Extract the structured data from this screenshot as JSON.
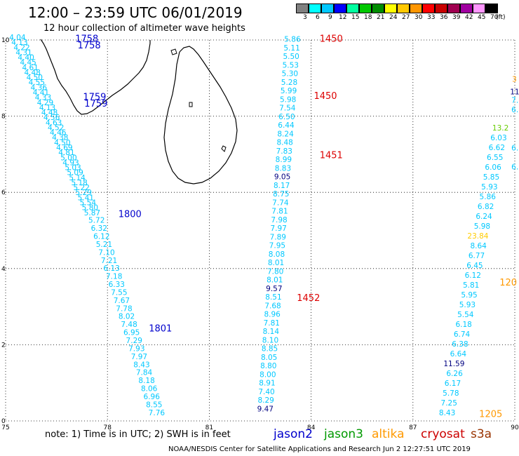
{
  "title": "12:00 – 23:59 UTC 06/01/2019",
  "subtitle": "12 hour collection of altimeter wave heights",
  "legend": {
    "unit": "(ft)",
    "colors": [
      "#808080",
      "#00ffff",
      "#00c8ff",
      "#0000ff",
      "#00ffa0",
      "#00c800",
      "#008c00",
      "#ffff00",
      "#ffc800",
      "#ff9600",
      "#ff0000",
      "#c80000",
      "#a00050",
      "#a000a0",
      "#ff96ff",
      "#000000"
    ],
    "labels": [
      "3",
      "6",
      "9",
      "12",
      "15",
      "18",
      "21",
      "24",
      "27",
      "30",
      "33",
      "36",
      "39",
      "42",
      "45",
      "70"
    ]
  },
  "axes": {
    "x_ticks": [
      "75",
      "78",
      "81",
      "84",
      "87",
      "90"
    ],
    "y_ticks": [
      "0",
      "2",
      "4",
      "6",
      "8",
      "10"
    ]
  },
  "note": "note: 1) Time is in UTC; 2) SWH is in feet",
  "satellites": [
    {
      "name": "jason2",
      "color": "#0000cc"
    },
    {
      "name": "jason3",
      "color": "#009900"
    },
    {
      "name": "altika",
      "color": "#ff9900"
    },
    {
      "name": "cryosat",
      "color": "#cc0000"
    },
    {
      "name": "s3a",
      "color": "#993300"
    }
  ],
  "credit": "NOAA/NESDIS Center for Satellite Applications and Research   Jun  2 12:27:51 UTC 2019",
  "colors": {
    "cyan": "#00c8ff",
    "blue": "#0000cc",
    "red": "#dd0000",
    "orange": "#ff9900",
    "yellow": "#ffcc00",
    "green": "#66cc00",
    "navy": "#000080"
  },
  "track1": {
    "heights": [
      "4.04",
      "4.13",
      "4.22",
      "4.31",
      "4.40",
      "4.45",
      "4.61",
      "4.48",
      "4.50",
      "4.55",
      "4.36",
      "4.41",
      "4.33",
      "4.29",
      "4.13",
      "4.48",
      "4.56",
      "4.63",
      "4.52",
      "4.46",
      "4.38",
      "4.50",
      "4.69",
      "4.81",
      "5.00",
      "4.93",
      "5.03",
      "5.09",
      "5.14",
      "5.18",
      "5.22",
      "5.29",
      "5.41",
      "5.54",
      "5.80",
      "5.87",
      "5.72",
      "6.32",
      "6.12",
      "5.21",
      "7.10",
      "7.21",
      "6.13",
      "7.18",
      "6.33",
      "7.55",
      "7.67",
      "7.78",
      "8.02",
      "7.48",
      "6.95",
      "7.29",
      "7.93",
      "7.97",
      "8.43",
      "7.84",
      "8.18",
      "8.06",
      "6.96",
      "8.55",
      "7.76"
    ],
    "dense_colors": "cyan",
    "time_labels": [
      {
        "text": "1758",
        "lon": 77.05,
        "lat": 9.95
      },
      {
        "text": "1758",
        "lon": 77.12,
        "lat": 9.78
      },
      {
        "text": "1759",
        "lon": 77.28,
        "lat": 8.43
      },
      {
        "text": "1759",
        "lon": 77.32,
        "lat": 8.25
      },
      {
        "text": "1800",
        "lon": 78.32,
        "lat": 5.35
      },
      {
        "text": "1801",
        "lon": 79.22,
        "lat": 2.35
      }
    ]
  },
  "track2": {
    "heights": [
      "5.86",
      "5.11",
      "5.50",
      "5.53",
      "5.30",
      "5.28",
      "5.99",
      "5.98",
      "7.54",
      "6.50",
      "6.44",
      "8.24",
      "8.48",
      "7.83",
      "8.99",
      "8.83",
      "9.05",
      "8.17",
      "8.75",
      "7.74",
      "7.81",
      "7.98",
      "7.97",
      "7.89",
      "7.95",
      "8.08",
      "8.01",
      "7.80",
      "8.01",
      "9.57",
      "8.51",
      "7.68",
      "8.96",
      "7.81",
      "8.14",
      "8.10",
      "8.85",
      "8.05",
      "8.80",
      "8.00",
      "8.91",
      "7.40",
      "8.29",
      "9.47"
    ],
    "navy_indices": [
      16,
      29,
      43
    ],
    "time_labels": [
      {
        "text": "1450",
        "lon": 84.25,
        "lat": 9.95
      },
      {
        "text": "1450",
        "lon": 84.08,
        "lat": 8.45
      },
      {
        "text": "1451",
        "lon": 84.25,
        "lat": 6.9
      },
      {
        "text": "1452",
        "lon": 83.58,
        "lat": 3.15
      }
    ]
  },
  "track3": {
    "heights": [
      "13.2",
      "6.03",
      "6.62",
      "6.55",
      "6.06",
      "5.85",
      "5.93",
      "5.86",
      "6.82",
      "6.24",
      "5.98",
      "23.84",
      "8.64",
      "6.77",
      "6.45",
      "6.12",
      "5.81",
      "5.95",
      "5.93",
      "5.54",
      "6.18",
      "6.74",
      "6.38",
      "6.64",
      "11.59",
      "6.26",
      "6.17",
      "5.78",
      "7.25",
      "8.43"
    ],
    "special": {
      "0": "green",
      "11": "yellow",
      "24": "navy"
    },
    "edge_labels": [
      {
        "text": "11",
        "lon": 89.86,
        "lat": 8.57,
        "color": "navy"
      },
      {
        "text": "7.",
        "lon": 89.9,
        "lat": 8.35,
        "color": "cyan"
      },
      {
        "text": "6.",
        "lon": 89.9,
        "lat": 8.1,
        "color": "cyan"
      },
      {
        "text": "3",
        "lon": 89.92,
        "lat": 8.9,
        "color": "orange"
      },
      {
        "text": "6.",
        "lon": 89.9,
        "lat": 7.1,
        "color": "cyan"
      },
      {
        "text": "6.",
        "lon": 89.9,
        "lat": 6.6,
        "color": "cyan"
      }
    ],
    "time_labels": [
      {
        "text": "120",
        "lon": 89.55,
        "lat": 3.55,
        "color": "orange"
      },
      {
        "text": "1205",
        "lon": 88.95,
        "lat": 0.1,
        "color": "orange"
      }
    ]
  }
}
